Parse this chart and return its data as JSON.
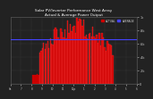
{
  "title": "Solar PV/Inverter Performance West Array",
  "subtitle": "Actual & Average Power Output",
  "bg_color": "#222222",
  "plot_bg_color": "#222222",
  "grid_color": "#555555",
  "bar_color": "#cc0000",
  "bar_edge_color": "#ff4444",
  "avg_line_color": "#4444ff",
  "text_color": "#cccccc",
  "title_color": "#ffffff",
  "avg_value": 0.5,
  "ylim": [
    0,
    1
  ],
  "ylabel_values": [
    "1k",
    "0.8k",
    "0.6k",
    "0.4k",
    "0.2k",
    "0"
  ],
  "n_bars": 96,
  "legend_actual": "ACTUAL",
  "legend_average": "AVERAGE"
}
